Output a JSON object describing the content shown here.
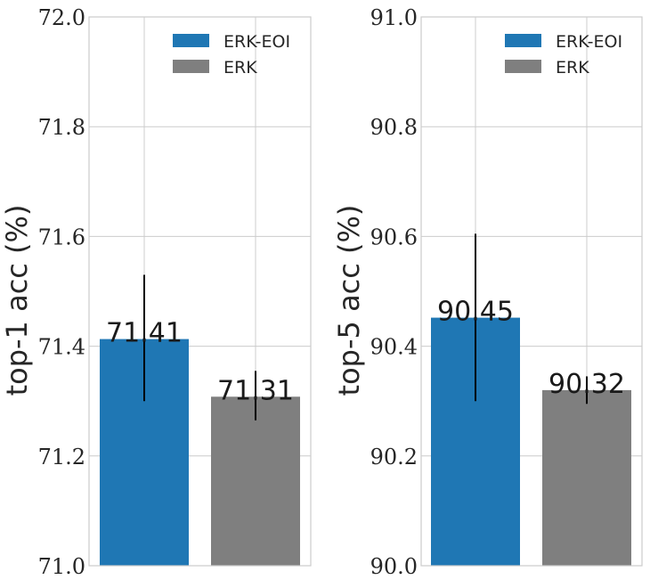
{
  "chart_data": [
    {
      "type": "bar",
      "ylabel": "top-1 acc (%)",
      "ylim": [
        71.0,
        72.0
      ],
      "yticks": [
        "71.0",
        "71.2",
        "71.4",
        "71.6",
        "71.8",
        "72.0"
      ],
      "grid": true,
      "legend_position": "top-right",
      "bars": [
        {
          "name": "ERK-EOI",
          "value": 71.413,
          "label": "71.41",
          "err_low": 71.3,
          "err_high": 71.53,
          "color": "#1f77b4"
        },
        {
          "name": "ERK",
          "value": 71.308,
          "label": "71.31",
          "err_low": 71.265,
          "err_high": 71.355,
          "color": "#7f7f7f"
        }
      ]
    },
    {
      "type": "bar",
      "ylabel": "top-5 acc (%)",
      "ylim": [
        90.0,
        91.0
      ],
      "yticks": [
        "90.0",
        "90.2",
        "90.4",
        "90.6",
        "90.8",
        "91.0"
      ],
      "grid": true,
      "legend_position": "top-right",
      "bars": [
        {
          "name": "ERK-EOI",
          "value": 90.452,
          "label": "90.45",
          "err_low": 90.3,
          "err_high": 90.605,
          "color": "#1f77b4"
        },
        {
          "name": "ERK",
          "value": 90.32,
          "label": "90.32",
          "err_low": 90.295,
          "err_high": 90.345,
          "color": "#7f7f7f"
        }
      ]
    }
  ]
}
